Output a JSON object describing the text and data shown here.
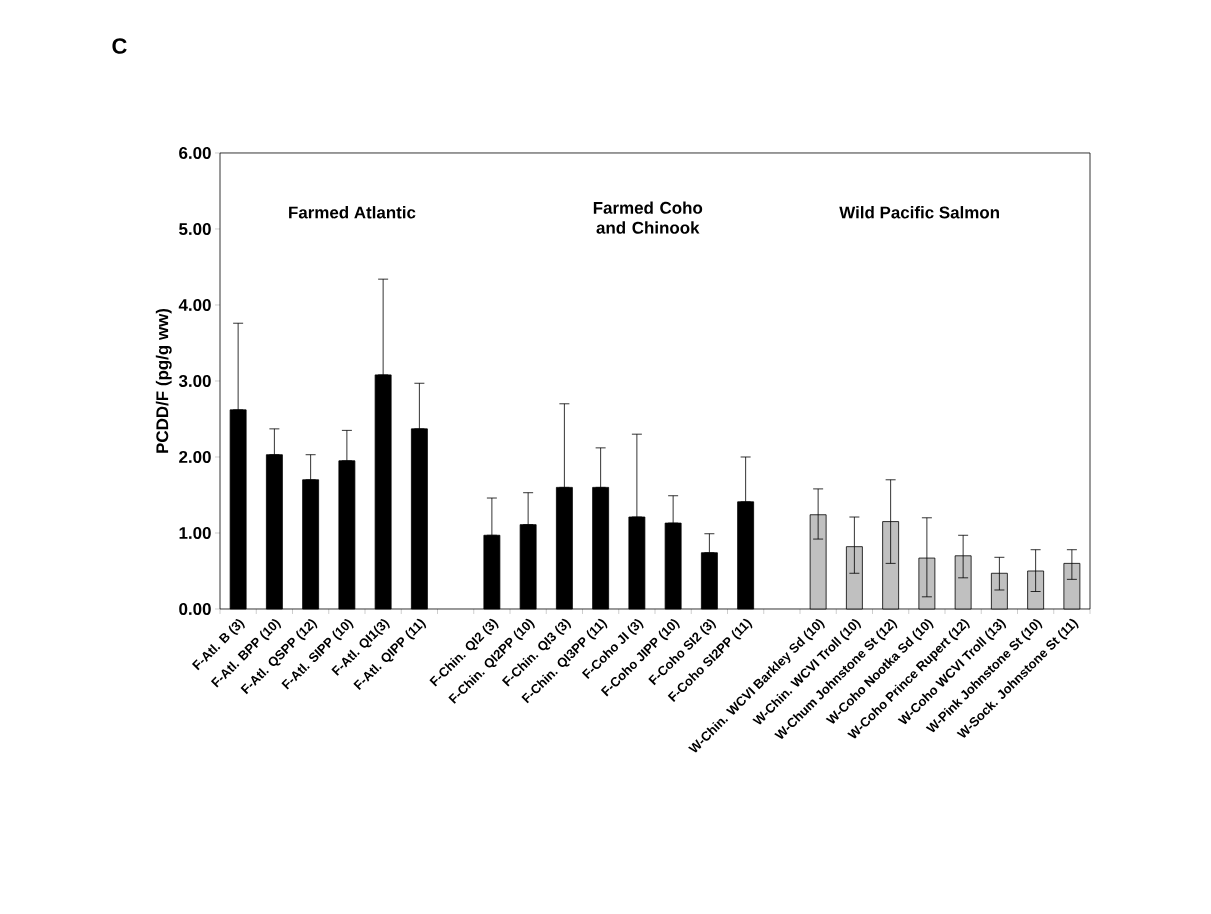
{
  "chart_data": {
    "type": "bar",
    "title": "C",
    "ylabel": "PCDD/F (pg/g ww)",
    "categories": [
      "F-Atl. B (3)",
      "F-Atl. BPP (10)",
      "F-Atl. QSPP (12)",
      "F-Atl. SIPP (10)",
      "F-Atl. QI1(3)",
      "F-Atl. QIPP (11)",
      null,
      "F-Chin. QI2 (3)",
      "F-Chin. QI2PP (10)",
      "F-Chin. QI3 (3)",
      "F-Chin. QI3PP (11)",
      "F-Coho JI (3)",
      "F-Coho JIPP (10)",
      "F-Coho SI2 (3)",
      "F-Coho SI2PP (11)",
      null,
      "W-Chin. WCVI Barkley Sd (10)",
      "W-Chin. WCVI Troll (10)",
      "W-Chum Johnstone St (12)",
      "W-Coho Nootka Sd (10)",
      "W-Coho Prince Rupert (12)",
      "W-Coho WCVI Troll (13)",
      "W-Pink Johnstone St (10)",
      "W-Sock. Johnstone St (11)"
    ],
    "series": [
      {
        "color": "#000000",
        "values": [
          2.62,
          2.03,
          1.7,
          1.95,
          3.08,
          2.37,
          null,
          0.97,
          1.11,
          1.6,
          1.6,
          1.21,
          1.13,
          0.74,
          1.41,
          null,
          null,
          null,
          null,
          null,
          null,
          null,
          null,
          null
        ],
        "errors": [
          [
            2.62,
            3.76
          ],
          [
            2.03,
            2.37
          ],
          [
            1.7,
            2.03
          ],
          [
            1.95,
            2.35
          ],
          [
            3.08,
            4.34
          ],
          [
            2.37,
            2.97
          ],
          null,
          [
            0.97,
            1.46
          ],
          [
            1.11,
            1.53
          ],
          [
            1.6,
            2.7
          ],
          [
            1.6,
            2.12
          ],
          [
            1.21,
            2.3
          ],
          [
            1.13,
            1.49
          ],
          [
            0.74,
            0.99
          ],
          [
            1.41,
            2.0
          ],
          null,
          null,
          null,
          null,
          null,
          null,
          null,
          null,
          null
        ]
      },
      {
        "color": "#c0c0c0",
        "values": [
          null,
          null,
          null,
          null,
          null,
          null,
          null,
          null,
          null,
          null,
          null,
          null,
          null,
          null,
          null,
          null,
          1.24,
          0.82,
          1.15,
          0.67,
          0.7,
          0.47,
          0.5,
          0.6
        ],
        "errors": [
          null,
          null,
          null,
          null,
          null,
          null,
          null,
          null,
          null,
          null,
          null,
          null,
          null,
          null,
          null,
          null,
          [
            0.92,
            1.58
          ],
          [
            0.47,
            1.21
          ],
          [
            0.6,
            1.7
          ],
          [
            0.16,
            1.2
          ],
          [
            0.41,
            0.97
          ],
          [
            0.25,
            0.68
          ],
          [
            0.23,
            0.78
          ],
          [
            0.39,
            0.78
          ]
        ]
      }
    ],
    "ylim": [
      0,
      6
    ],
    "yticks": [
      {
        "value": 0,
        "label": "0.00"
      },
      {
        "value": 1,
        "label": "1.00"
      },
      {
        "value": 2,
        "label": "2.00"
      },
      {
        "value": 3,
        "label": "3.00"
      },
      {
        "value": 4,
        "label": "4.00"
      },
      {
        "value": 5,
        "label": "5.00"
      },
      {
        "value": 6,
        "label": "6.00"
      }
    ],
    "annotations": [
      "Farmed Atlantic",
      "Farmed Coho and Chinook",
      "Wild Pacific Salmon"
    ]
  }
}
